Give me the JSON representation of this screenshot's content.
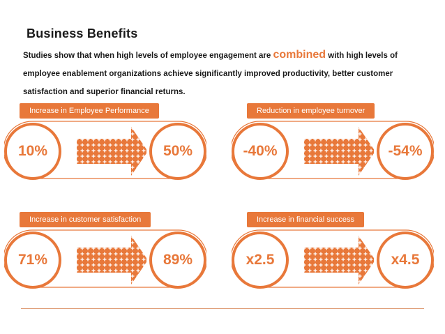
{
  "title": "Business Benefits",
  "intro": {
    "before": "Studies show that when high levels of employee engagement are ",
    "highlight": "combined",
    "after": " with high levels of employee enablement organizations achieve significantly improved productivity, better customer satisfaction and superior financial returns."
  },
  "colors": {
    "accent": "#e8783a",
    "accent_light": "#f0a070"
  },
  "panels": [
    {
      "label": "Increase in Employee Performance",
      "before": "10%",
      "after": "50%"
    },
    {
      "label": "Reduction in employee turnover",
      "before": "-40%",
      "after": "-54%"
    },
    {
      "label": "Increase in customer satisfaction",
      "before": "71%",
      "after": "89%"
    },
    {
      "label": "Increase in financial success",
      "before": "x2.5",
      "after": "x4.5"
    }
  ]
}
